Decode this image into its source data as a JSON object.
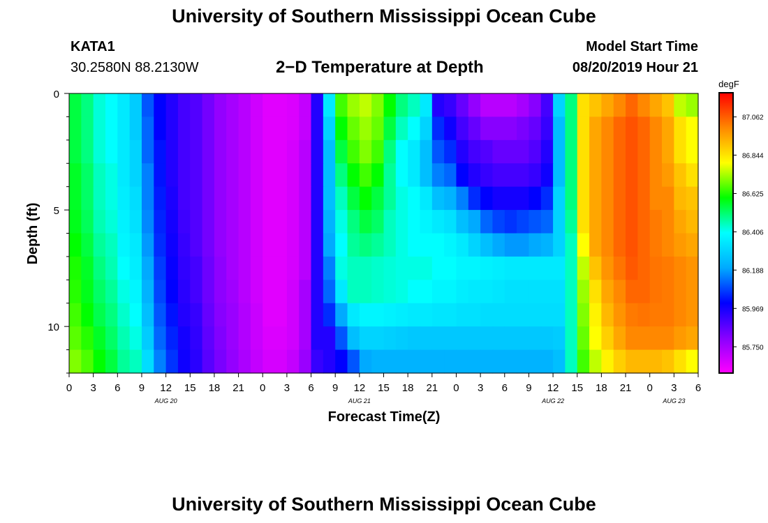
{
  "header": {
    "title": "University of Southern Mississippi Ocean Cube",
    "station_id": "KATA1",
    "station_coords": "30.2580N 88.2130W",
    "plot_title": "2−D Temperature at Depth",
    "start_label": "Model Start Time",
    "start_value": "08/20/2019 Hour 21"
  },
  "footer": {
    "title": "University of Southern Mississippi Ocean Cube"
  },
  "chart_data": {
    "type": "heatmap",
    "title": "2−D Temperature at Depth",
    "xlabel": "Forecast Time(Z)",
    "ylabel": "Depth (ft)",
    "x_unit": "forecast hours from 08/20/2019 00Z",
    "x_range": [
      0,
      78
    ],
    "y_range": [
      0,
      12
    ],
    "y_direction": "down",
    "y_ticks": [
      0,
      5,
      10
    ],
    "x_tick_labels": [
      "0",
      "3",
      "6",
      "9",
      "12",
      "15",
      "18",
      "21",
      "0",
      "3",
      "6",
      "9",
      "12",
      "15",
      "18",
      "21",
      "0",
      "3",
      "6",
      "9",
      "12",
      "15",
      "18",
      "21",
      "0",
      "3",
      "6"
    ],
    "date_labels": [
      {
        "text": "AUG 20",
        "hour": 12
      },
      {
        "text": "AUG 21",
        "hour": 36
      },
      {
        "text": "AUG 22",
        "hour": 60
      },
      {
        "text": "AUG 23",
        "hour": 75
      }
    ],
    "colorbar": {
      "unit": "degF",
      "min": 85.6,
      "max": 87.2,
      "ticks": [
        85.75,
        85.969,
        86.188,
        86.406,
        86.625,
        86.844,
        87.062
      ],
      "tick_labels": [
        "85.750",
        "85.969",
        "86.188",
        "86.406",
        "86.625",
        "86.844",
        "87.062"
      ],
      "stops": [
        "#ff00ff",
        "#8800ff",
        "#0000ff",
        "#00aaff",
        "#00ffff",
        "#00ff00",
        "#ffff00",
        "#ff8800",
        "#ff0000"
      ]
    },
    "depths": [
      0.5,
      1.5,
      2.5,
      3.5,
      4.5,
      5.5,
      6.5,
      7.5,
      8.5,
      9.5,
      10.5,
      11.5
    ],
    "hours": [
      0,
      1.5,
      3,
      4.5,
      6,
      7.5,
      9,
      10.5,
      12,
      13.5,
      15,
      16.5,
      18,
      19.5,
      21,
      22.5,
      24,
      25.5,
      27,
      28.5,
      30,
      31.5,
      33,
      34.5,
      36,
      37.5,
      39,
      40.5,
      42,
      43.5,
      45,
      46.5,
      48,
      49.5,
      51,
      52.5,
      54,
      55.5,
      57,
      58.5,
      60,
      61.5,
      63,
      64.5,
      66,
      67.5,
      69,
      70.5,
      72,
      73.5,
      75,
      76.5
    ],
    "values": [
      [
        86.55,
        86.5,
        86.43,
        86.4,
        86.35,
        86.28,
        86.1,
        86.0,
        85.95,
        85.9,
        85.88,
        85.83,
        85.78,
        85.75,
        85.72,
        85.68,
        85.65,
        85.65,
        85.66,
        85.7,
        85.95,
        86.35,
        86.65,
        86.72,
        86.75,
        86.7,
        86.6,
        86.5,
        86.45,
        86.35,
        85.95,
        85.92,
        85.85,
        85.78,
        85.72,
        85.72,
        85.72,
        85.75,
        85.8,
        85.9,
        86.3,
        86.5,
        86.85,
        86.9,
        86.95,
        87.0,
        87.05,
        87.0,
        86.95,
        86.9,
        86.75,
        86.72
      ],
      [
        86.55,
        86.5,
        86.43,
        86.4,
        86.35,
        86.28,
        86.12,
        86.0,
        85.95,
        85.9,
        85.88,
        85.83,
        85.78,
        85.75,
        85.72,
        85.68,
        85.65,
        85.65,
        85.66,
        85.7,
        85.95,
        86.3,
        86.6,
        86.68,
        86.72,
        86.68,
        86.55,
        86.45,
        86.4,
        86.3,
        86.05,
        85.98,
        85.9,
        85.85,
        85.8,
        85.8,
        85.8,
        85.82,
        85.85,
        85.92,
        86.25,
        86.5,
        86.85,
        86.95,
        87.0,
        87.05,
        87.08,
        87.05,
        87.0,
        86.95,
        86.85,
        86.8
      ],
      [
        86.55,
        86.5,
        86.43,
        86.4,
        86.35,
        86.3,
        86.12,
        86.02,
        85.95,
        85.9,
        85.88,
        85.83,
        85.78,
        85.75,
        85.72,
        85.68,
        85.65,
        85.65,
        85.67,
        85.72,
        85.95,
        86.25,
        86.55,
        86.65,
        86.7,
        86.65,
        86.5,
        86.4,
        86.35,
        86.25,
        86.1,
        86.05,
        85.95,
        85.9,
        85.88,
        85.85,
        85.85,
        85.85,
        85.88,
        85.95,
        86.25,
        86.5,
        86.85,
        86.95,
        87.0,
        87.05,
        87.08,
        87.05,
        87.0,
        86.95,
        86.85,
        86.8
      ],
      [
        86.57,
        86.52,
        86.45,
        86.42,
        86.35,
        86.3,
        86.15,
        86.02,
        85.95,
        85.9,
        85.88,
        85.83,
        85.78,
        85.75,
        85.72,
        85.68,
        85.65,
        85.65,
        85.67,
        85.72,
        85.95,
        86.25,
        86.5,
        86.6,
        86.65,
        86.6,
        86.48,
        86.4,
        86.35,
        86.25,
        86.15,
        86.12,
        86.0,
        85.95,
        85.92,
        85.9,
        85.9,
        85.9,
        85.92,
        85.98,
        86.25,
        86.5,
        86.85,
        86.95,
        87.0,
        87.05,
        87.08,
        87.05,
        87.0,
        86.97,
        86.9,
        86.85
      ],
      [
        86.57,
        86.52,
        86.45,
        86.42,
        86.36,
        86.32,
        86.15,
        86.03,
        85.96,
        85.9,
        85.88,
        85.83,
        85.78,
        85.75,
        85.72,
        85.68,
        85.65,
        85.65,
        85.67,
        85.72,
        85.95,
        86.25,
        86.45,
        86.55,
        86.6,
        86.55,
        86.48,
        86.42,
        86.4,
        86.35,
        86.25,
        86.22,
        86.15,
        86.05,
        86.0,
        85.97,
        85.97,
        85.97,
        86.0,
        86.05,
        86.3,
        86.5,
        86.85,
        86.95,
        87.0,
        87.05,
        87.08,
        87.05,
        87.0,
        87.0,
        86.92,
        86.9
      ],
      [
        86.58,
        86.53,
        86.46,
        86.43,
        86.37,
        86.33,
        86.16,
        86.04,
        85.97,
        85.91,
        85.88,
        85.83,
        85.78,
        85.75,
        85.72,
        85.68,
        85.65,
        85.65,
        85.67,
        85.72,
        85.95,
        86.22,
        86.42,
        86.5,
        86.55,
        86.52,
        86.45,
        86.42,
        86.4,
        86.38,
        86.35,
        86.33,
        86.25,
        86.2,
        86.12,
        86.08,
        86.06,
        86.08,
        86.1,
        86.12,
        86.3,
        86.48,
        86.85,
        86.95,
        87.0,
        87.05,
        87.08,
        87.05,
        87.02,
        87.0,
        86.95,
        86.92
      ],
      [
        86.6,
        86.55,
        86.48,
        86.45,
        86.38,
        86.35,
        86.18,
        86.05,
        85.98,
        85.92,
        85.88,
        85.83,
        85.78,
        85.75,
        85.72,
        85.68,
        85.65,
        85.65,
        85.67,
        85.72,
        85.95,
        86.2,
        86.4,
        86.48,
        86.5,
        86.48,
        86.45,
        86.42,
        86.4,
        86.4,
        86.4,
        86.38,
        86.35,
        86.3,
        86.25,
        86.2,
        86.18,
        86.18,
        86.2,
        86.22,
        86.3,
        86.45,
        86.8,
        86.95,
        87.0,
        87.05,
        87.08,
        87.05,
        87.02,
        87.0,
        86.97,
        86.95
      ],
      [
        86.62,
        86.57,
        86.5,
        86.46,
        86.4,
        86.36,
        86.2,
        86.07,
        85.99,
        85.93,
        85.9,
        85.84,
        85.79,
        85.75,
        85.72,
        85.68,
        85.65,
        85.65,
        85.67,
        85.72,
        85.95,
        86.15,
        86.42,
        86.45,
        86.45,
        86.44,
        86.43,
        86.42,
        86.42,
        86.42,
        86.4,
        86.4,
        86.38,
        86.38,
        86.37,
        86.36,
        86.35,
        86.35,
        86.35,
        86.35,
        86.35,
        86.45,
        86.75,
        86.9,
        86.98,
        87.03,
        87.07,
        87.05,
        87.03,
        87.02,
        87.0,
        86.98
      ],
      [
        86.63,
        86.58,
        86.52,
        86.48,
        86.42,
        86.38,
        86.22,
        86.08,
        86.0,
        85.94,
        85.9,
        85.84,
        85.79,
        85.76,
        85.72,
        85.68,
        85.65,
        85.65,
        85.68,
        85.75,
        85.95,
        86.12,
        86.35,
        86.45,
        86.45,
        86.44,
        86.43,
        86.42,
        86.4,
        86.4,
        86.38,
        86.38,
        86.36,
        86.35,
        86.35,
        86.34,
        86.33,
        86.33,
        86.33,
        86.33,
        86.33,
        86.45,
        86.72,
        86.85,
        86.95,
        87.0,
        87.05,
        87.05,
        87.03,
        87.02,
        87.0,
        86.98
      ],
      [
        86.65,
        86.6,
        86.54,
        86.5,
        86.44,
        86.4,
        86.25,
        86.1,
        86.02,
        85.95,
        85.92,
        85.85,
        85.8,
        85.77,
        85.73,
        85.69,
        85.65,
        85.65,
        85.68,
        85.75,
        85.95,
        86.05,
        86.2,
        86.35,
        86.38,
        86.38,
        86.37,
        86.36,
        86.35,
        86.35,
        86.34,
        86.34,
        86.33,
        86.33,
        86.32,
        86.32,
        86.32,
        86.32,
        86.32,
        86.32,
        86.32,
        86.45,
        86.7,
        86.82,
        86.92,
        86.98,
        87.02,
        87.03,
        87.02,
        87.02,
        87.0,
        86.98
      ],
      [
        86.67,
        86.63,
        86.57,
        86.52,
        86.46,
        86.42,
        86.28,
        86.12,
        86.04,
        85.97,
        85.93,
        85.86,
        85.81,
        85.77,
        85.73,
        85.69,
        85.66,
        85.66,
        85.68,
        85.75,
        85.95,
        85.95,
        86.1,
        86.25,
        86.3,
        86.3,
        86.29,
        86.28,
        86.27,
        86.27,
        86.27,
        86.27,
        86.27,
        86.27,
        86.27,
        86.27,
        86.27,
        86.27,
        86.27,
        86.27,
        86.28,
        86.45,
        86.68,
        86.8,
        86.88,
        86.95,
        87.0,
        87.0,
        87.0,
        87.0,
        86.97,
        86.95
      ],
      [
        86.7,
        86.66,
        86.6,
        86.55,
        86.48,
        86.45,
        86.32,
        86.15,
        86.06,
        85.98,
        85.94,
        85.87,
        85.82,
        85.78,
        85.74,
        85.7,
        85.67,
        85.67,
        85.7,
        85.77,
        85.92,
        85.95,
        86.0,
        86.1,
        86.2,
        86.22,
        86.22,
        86.22,
        86.22,
        86.22,
        86.22,
        86.22,
        86.22,
        86.22,
        86.22,
        86.22,
        86.22,
        86.22,
        86.22,
        86.22,
        86.25,
        86.45,
        86.65,
        86.75,
        86.82,
        86.88,
        86.92,
        86.92,
        86.92,
        86.9,
        86.85,
        86.8
      ]
    ]
  }
}
